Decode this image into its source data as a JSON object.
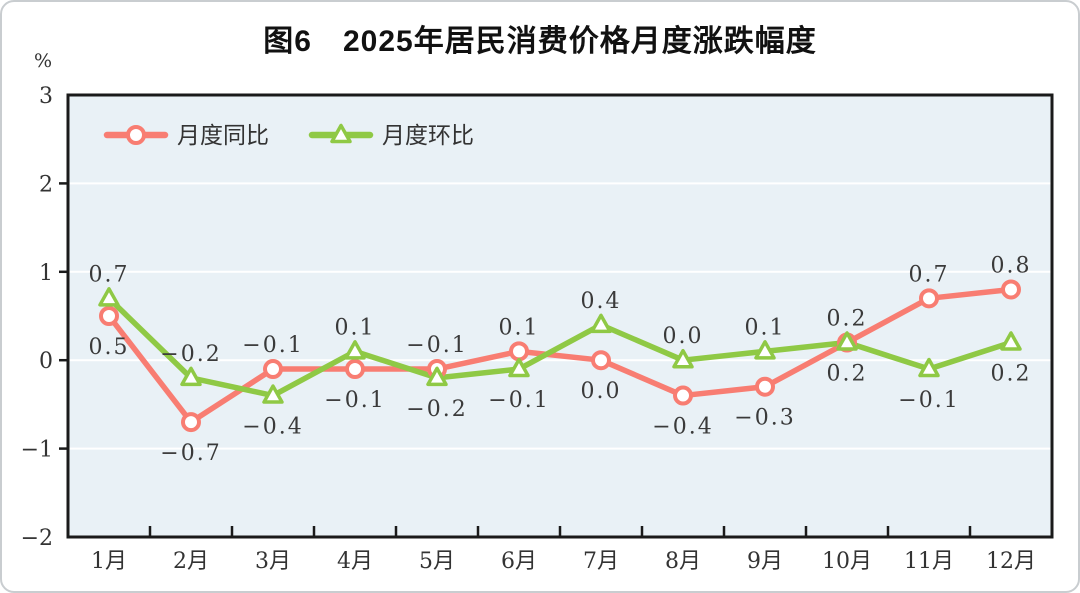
{
  "chart_data": {
    "type": "line",
    "title": "图6　2025年居民消费价格月度涨跌幅度",
    "ylabel": "%",
    "xlabel": "",
    "ylim": [
      -2,
      3
    ],
    "y_ticks": [
      3,
      2,
      1,
      0,
      -1,
      -2
    ],
    "grid": "horizontal-white-on-lightblue",
    "plot_bg_color": "#E9F1F6",
    "gridline_color": "#FFFFFF",
    "axis_color": "#1a1a1a",
    "label_text_color": "#3a3a3a",
    "legend_position": "top-left-inside",
    "categories": [
      "1月",
      "2月",
      "3月",
      "4月",
      "5月",
      "6月",
      "7月",
      "8月",
      "9月",
      "10月",
      "11月",
      "12月"
    ],
    "series": [
      {
        "name": "月度同比",
        "color": "#F87D72",
        "marker": "circle",
        "values": [
          0.5,
          -0.7,
          -0.1,
          -0.1,
          -0.1,
          0.1,
          0.0,
          -0.4,
          -0.3,
          0.2,
          0.7,
          0.8
        ],
        "label_positions": [
          "below",
          "below",
          "above",
          "below",
          "above",
          "above",
          "below",
          "below",
          "below",
          "below",
          "above",
          "above"
        ]
      },
      {
        "name": "月度环比",
        "color": "#8FC945",
        "marker": "triangle",
        "values": [
          0.7,
          -0.2,
          -0.4,
          0.1,
          -0.2,
          -0.1,
          0.4,
          0.0,
          0.1,
          0.2,
          -0.1,
          0.2
        ],
        "label_positions": [
          "above",
          "above",
          "below",
          "above",
          "below",
          "below",
          "above",
          "above",
          "above",
          "above",
          "below",
          "below"
        ]
      }
    ]
  }
}
